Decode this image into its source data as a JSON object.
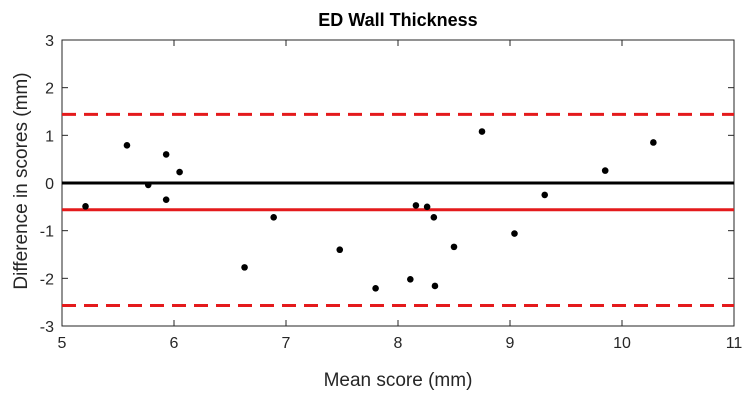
{
  "chart_data": {
    "type": "scatter",
    "title": "ED Wall Thickness",
    "xlabel": "Mean score (mm)",
    "ylabel": "Difference in scores (mm)",
    "xlim": [
      5,
      11
    ],
    "ylim": [
      -3,
      3
    ],
    "xticks": [
      "5",
      "6",
      "7",
      "8",
      "9",
      "10",
      "11"
    ],
    "yticks": [
      "-3",
      "-2",
      "-1",
      "0",
      "1",
      "2",
      "3"
    ],
    "grid": false,
    "legend": "none",
    "points": {
      "x": [
        5.21,
        5.58,
        5.77,
        5.93,
        5.93,
        6.05,
        6.63,
        6.89,
        7.48,
        7.8,
        8.11,
        8.16,
        8.26,
        8.32,
        8.33,
        8.5,
        8.75,
        9.04,
        9.31,
        9.85,
        10.28
      ],
      "y": [
        -0.49,
        0.79,
        -0.04,
        0.6,
        -0.35,
        0.23,
        -1.77,
        -0.72,
        -1.4,
        -2.21,
        -2.02,
        -0.47,
        -0.5,
        -0.72,
        -2.16,
        -1.34,
        1.08,
        -1.06,
        -0.25,
        0.26,
        0.85
      ]
    },
    "reference_lines": [
      {
        "y": 0,
        "color": "#000000",
        "style": "solid"
      },
      {
        "y": -0.56,
        "color": "#e41a1c",
        "style": "solid"
      },
      {
        "y": 1.44,
        "color": "#e41a1c",
        "style": "dashed"
      },
      {
        "y": -2.57,
        "color": "#e41a1c",
        "style": "dashed"
      }
    ],
    "point_color": "#000000",
    "axis_color": "#262626"
  }
}
